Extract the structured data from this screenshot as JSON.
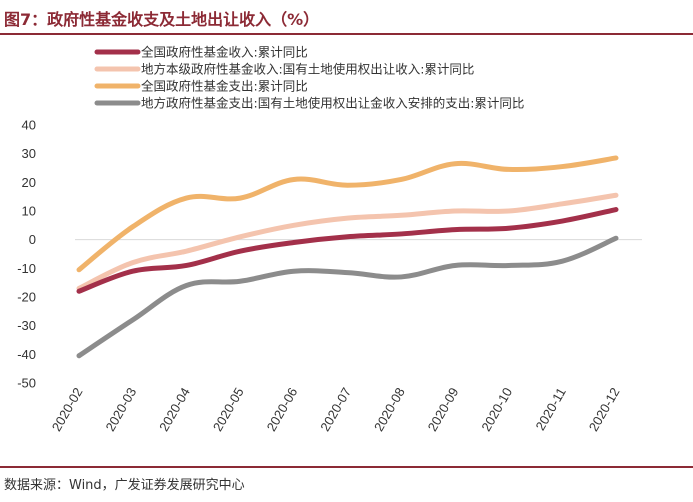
{
  "title": "图7：政府性基金收支及土地出让收入（%）",
  "source": "数据来源：Wind，广发证券发展研究中心",
  "chart_data": {
    "type": "line",
    "categories": [
      "2020-02",
      "2020-03",
      "2020-04",
      "2020-05",
      "2020-06",
      "2020-07",
      "2020-08",
      "2020-09",
      "2020-10",
      "2020-11",
      "2020-12"
    ],
    "ylim": [
      -50,
      40
    ],
    "yticks": [
      40,
      30,
      20,
      10,
      0,
      -10,
      -20,
      -30,
      -40,
      -50
    ],
    "legend_position": "top-left",
    "series": [
      {
        "name": "全国政府性基金收入:累计同比",
        "color": "#a3304a",
        "values": [
          -18,
          -11,
          -9,
          -4,
          -1,
          1,
          2,
          3.5,
          4,
          6.5,
          10.5
        ]
      },
      {
        "name": "地方本级政府性基金收入:国有土地使用权出让收入:累计同比",
        "color": "#f4c4ae",
        "values": [
          -17,
          -8,
          -4,
          1,
          5,
          7.5,
          8.5,
          10,
          10,
          12.5,
          15.5
        ]
      },
      {
        "name": "全国政府性基金支出:累计同比",
        "color": "#f0b36a",
        "values": [
          -10.5,
          4.5,
          14.5,
          14.5,
          21,
          19,
          21,
          26.5,
          24.5,
          25.5,
          28.5
        ]
      },
      {
        "name": "地方政府性基金支出:国有土地使用权出让金收入安排的支出:累计同比",
        "color": "#8c8c8c",
        "values": [
          -40.5,
          -28,
          -16,
          -14.5,
          -11,
          -11.5,
          -13,
          -9,
          -9,
          -7.5,
          0.5
        ]
      }
    ]
  }
}
